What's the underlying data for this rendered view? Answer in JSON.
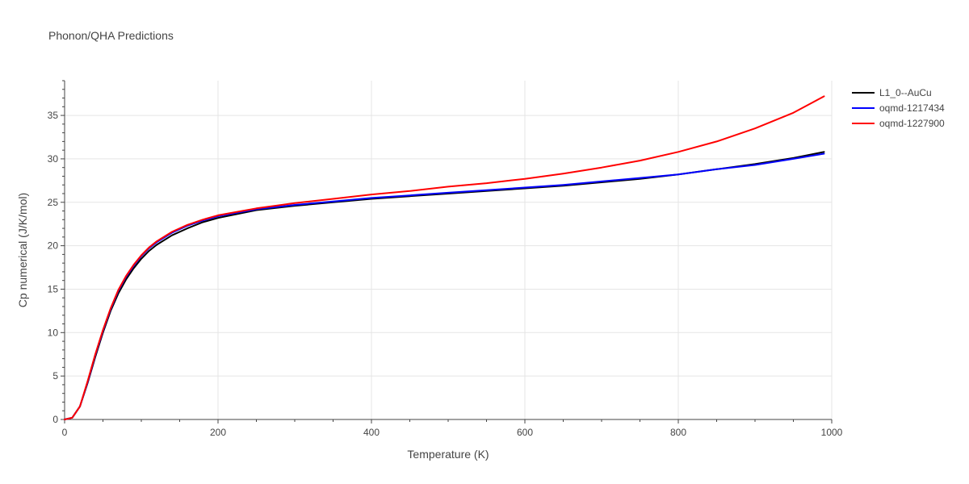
{
  "chart_data": {
    "type": "line",
    "title": "Phonon/QHA Predictions",
    "xlabel": "Temperature (K)",
    "ylabel": "Cp numerical (J/K/mol)",
    "xlim": [
      0,
      1000
    ],
    "ylim": [
      0,
      39
    ],
    "x_ticks": [
      "0",
      "200",
      "400",
      "600",
      "800",
      "1000"
    ],
    "y_ticks": [
      "0",
      "5",
      "10",
      "15",
      "20",
      "25",
      "30",
      "35"
    ],
    "grid": true,
    "legend_position": "top-right",
    "x": [
      0,
      10,
      20,
      30,
      40,
      50,
      60,
      70,
      80,
      90,
      100,
      110,
      120,
      140,
      160,
      180,
      200,
      250,
      300,
      350,
      400,
      450,
      500,
      550,
      600,
      650,
      700,
      750,
      800,
      850,
      900,
      950,
      990
    ],
    "series": [
      {
        "name": "L1_0--AuCu",
        "color": "#000000",
        "values": [
          0,
          0.2,
          1.5,
          4.2,
          7.2,
          10.0,
          12.5,
          14.5,
          16.1,
          17.4,
          18.5,
          19.4,
          20.1,
          21.2,
          22.0,
          22.7,
          23.2,
          24.1,
          24.6,
          25.0,
          25.4,
          25.7,
          26.0,
          26.3,
          26.6,
          26.9,
          27.3,
          27.7,
          28.2,
          28.8,
          29.4,
          30.1,
          30.8
        ]
      },
      {
        "name": "oqmd-1217434",
        "color": "#0000ff",
        "values": [
          0,
          0.2,
          1.5,
          4.3,
          7.4,
          10.2,
          12.7,
          14.8,
          16.4,
          17.7,
          18.8,
          19.7,
          20.4,
          21.5,
          22.3,
          22.9,
          23.4,
          24.2,
          24.7,
          25.1,
          25.5,
          25.8,
          26.1,
          26.4,
          26.7,
          27.0,
          27.4,
          27.8,
          28.2,
          28.8,
          29.3,
          30.0,
          30.6
        ]
      },
      {
        "name": "oqmd-1227900",
        "color": "#ff0000",
        "values": [
          0,
          0.2,
          1.5,
          4.4,
          7.5,
          10.3,
          12.8,
          14.9,
          16.5,
          17.8,
          18.9,
          19.8,
          20.5,
          21.6,
          22.4,
          23.0,
          23.5,
          24.3,
          24.9,
          25.4,
          25.9,
          26.3,
          26.8,
          27.2,
          27.7,
          28.3,
          29.0,
          29.8,
          30.8,
          32.0,
          33.5,
          35.3,
          37.2
        ]
      }
    ]
  }
}
